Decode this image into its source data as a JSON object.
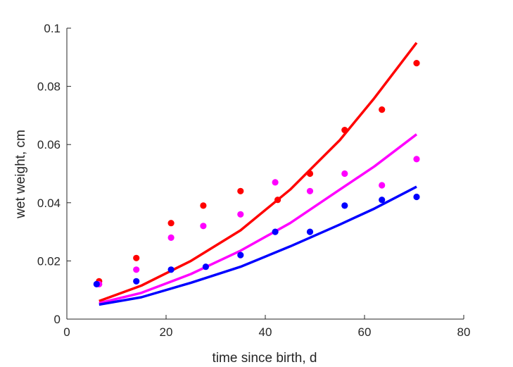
{
  "chart_data": {
    "type": "scatter",
    "title": "",
    "xlabel": "time since birth, d",
    "ylabel": "wet weight, cm",
    "xlim": [
      0,
      80
    ],
    "ylim": [
      0,
      0.1
    ],
    "xticks": [
      "0",
      "20",
      "40",
      "60",
      "80"
    ],
    "yticks": [
      "0",
      "0.02",
      "0.04",
      "0.06",
      "0.08",
      "0.1"
    ],
    "grid": false,
    "legend": "none",
    "series": [
      {
        "color": "#ff0000",
        "points": [
          [
            6.5,
            0.013
          ],
          [
            14,
            0.021
          ],
          [
            21,
            0.033
          ],
          [
            27.5,
            0.039
          ],
          [
            35,
            0.044
          ],
          [
            42.5,
            0.041
          ],
          [
            49,
            0.05
          ],
          [
            56,
            0.065
          ],
          [
            63.5,
            0.072
          ],
          [
            70.5,
            0.088
          ]
        ],
        "curve": [
          [
            6.5,
            0.0062
          ],
          [
            15,
            0.0115
          ],
          [
            25,
            0.02
          ],
          [
            35,
            0.0305
          ],
          [
            45,
            0.0445
          ],
          [
            55,
            0.0615
          ],
          [
            62,
            0.076
          ],
          [
            70.5,
            0.095
          ]
        ]
      },
      {
        "color": "#ff00ff",
        "points": [
          [
            6.5,
            0.012
          ],
          [
            14,
            0.017
          ],
          [
            21,
            0.028
          ],
          [
            27.5,
            0.032
          ],
          [
            35,
            0.036
          ],
          [
            42,
            0.047
          ],
          [
            49,
            0.044
          ],
          [
            56,
            0.05
          ],
          [
            63.5,
            0.046
          ],
          [
            70.5,
            0.055
          ]
        ],
        "curve": [
          [
            6.5,
            0.0055
          ],
          [
            15,
            0.009
          ],
          [
            25,
            0.0155
          ],
          [
            35,
            0.0235
          ],
          [
            45,
            0.033
          ],
          [
            55,
            0.0445
          ],
          [
            62,
            0.0525
          ],
          [
            70.5,
            0.0635
          ]
        ]
      },
      {
        "color": "#0000ff",
        "points": [
          [
            6,
            0.012
          ],
          [
            14,
            0.013
          ],
          [
            21,
            0.017
          ],
          [
            28,
            0.018
          ],
          [
            35,
            0.022
          ],
          [
            42,
            0.03
          ],
          [
            49,
            0.03
          ],
          [
            56,
            0.039
          ],
          [
            63.5,
            0.041
          ],
          [
            70.5,
            0.042
          ]
        ],
        "curve": [
          [
            6.5,
            0.005
          ],
          [
            15,
            0.0075
          ],
          [
            25,
            0.0125
          ],
          [
            35,
            0.018
          ],
          [
            45,
            0.025
          ],
          [
            55,
            0.0325
          ],
          [
            62,
            0.038
          ],
          [
            70.5,
            0.0455
          ]
        ]
      }
    ]
  }
}
